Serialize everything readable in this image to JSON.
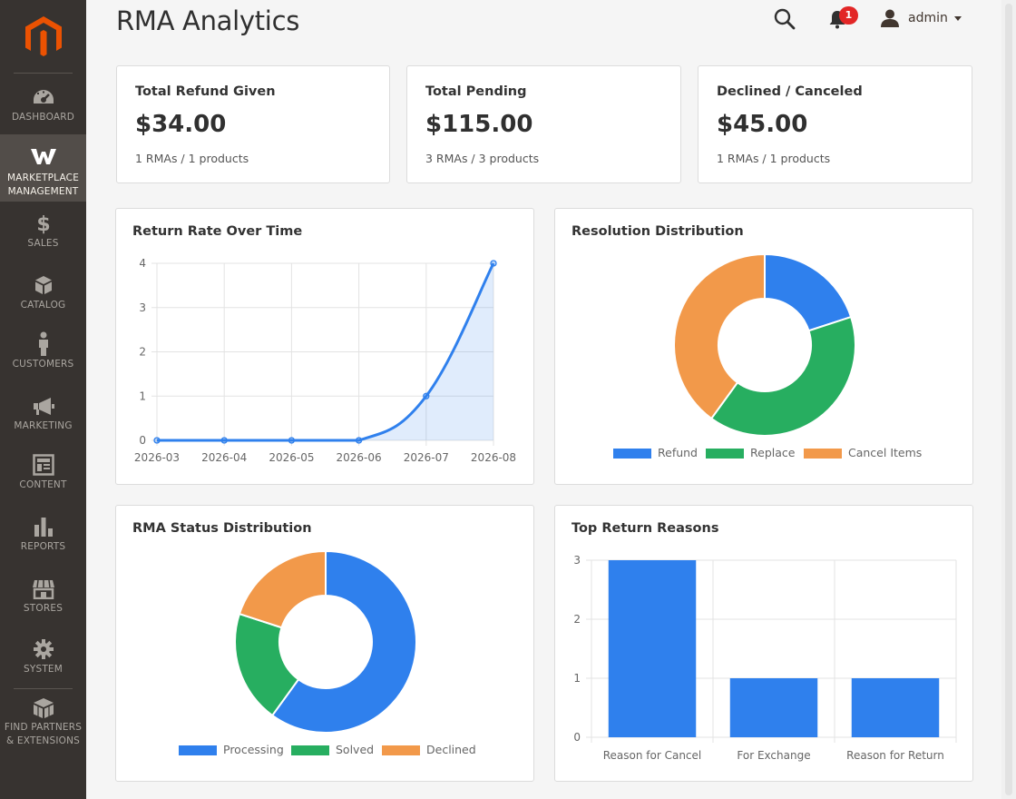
{
  "app": {
    "title": "RMA Analytics"
  },
  "sidebar": {
    "items": [
      {
        "label": "DASHBOARD",
        "icon": "dashboard-icon"
      },
      {
        "label": "MARKETPLACE MANAGEMENT",
        "line1": "MARKETPLACE",
        "line2": "MANAGEMENT",
        "icon": "marketplace-icon",
        "active": true
      },
      {
        "label": "SALES",
        "icon": "dollar-icon"
      },
      {
        "label": "CATALOG",
        "icon": "box-icon"
      },
      {
        "label": "CUSTOMERS",
        "icon": "person-icon"
      },
      {
        "label": "MARKETING",
        "icon": "megaphone-icon"
      },
      {
        "label": "CONTENT",
        "icon": "content-icon"
      },
      {
        "label": "REPORTS",
        "icon": "bar-chart-icon"
      },
      {
        "label": "STORES",
        "icon": "store-icon"
      },
      {
        "label": "SYSTEM",
        "icon": "gear-icon"
      },
      {
        "label": "FIND PARTNERS & EXTENSIONS",
        "line1": "FIND PARTNERS",
        "line2": "& EXTENSIONS",
        "icon": "blocks-icon"
      }
    ]
  },
  "header": {
    "notifications_count": "1",
    "user": "admin"
  },
  "stats": [
    {
      "title": "Total Refund Given",
      "value": "$34.00",
      "sub": "1 RMAs / 1 products"
    },
    {
      "title": "Total Pending",
      "value": "$115.00",
      "sub": "3 RMAs / 3 products"
    },
    {
      "title": "Declined / Canceled",
      "value": "$45.00",
      "sub": "1 RMAs / 1 products"
    }
  ],
  "colors": {
    "blue": "#2f80ed",
    "green": "#27ae60",
    "orange": "#f2994a",
    "brand": "#eb5202"
  },
  "chart_data": [
    {
      "type": "area",
      "title": "Return Rate Over Time",
      "x": [
        "2026-03",
        "2026-04",
        "2026-05",
        "2026-06",
        "2026-07",
        "2026-08"
      ],
      "values": [
        0,
        0,
        0,
        0,
        1,
        4
      ],
      "ylim": [
        0,
        4
      ],
      "yticks": [
        "0",
        "1",
        "2",
        "3",
        "4"
      ],
      "grid": true
    },
    {
      "type": "pie",
      "variant": "doughnut",
      "title": "Resolution Distribution",
      "labels": [
        "Refund",
        "Replace",
        "Cancel Items"
      ],
      "values": [
        1,
        2,
        2
      ],
      "legend": "bottom"
    },
    {
      "type": "pie",
      "variant": "doughnut",
      "title": "RMA Status Distribution",
      "labels": [
        "Processing",
        "Solved",
        "Declined"
      ],
      "values": [
        3,
        1,
        1
      ],
      "legend": "bottom"
    },
    {
      "type": "bar",
      "title": "Top Return Reasons",
      "categories": [
        "Reason for Cancel",
        "For Exchange",
        "Reason for Return"
      ],
      "values": [
        3,
        1,
        1
      ],
      "ylim": [
        0,
        3
      ],
      "yticks": [
        "0",
        "1",
        "2",
        "3"
      ],
      "grid": true
    }
  ]
}
